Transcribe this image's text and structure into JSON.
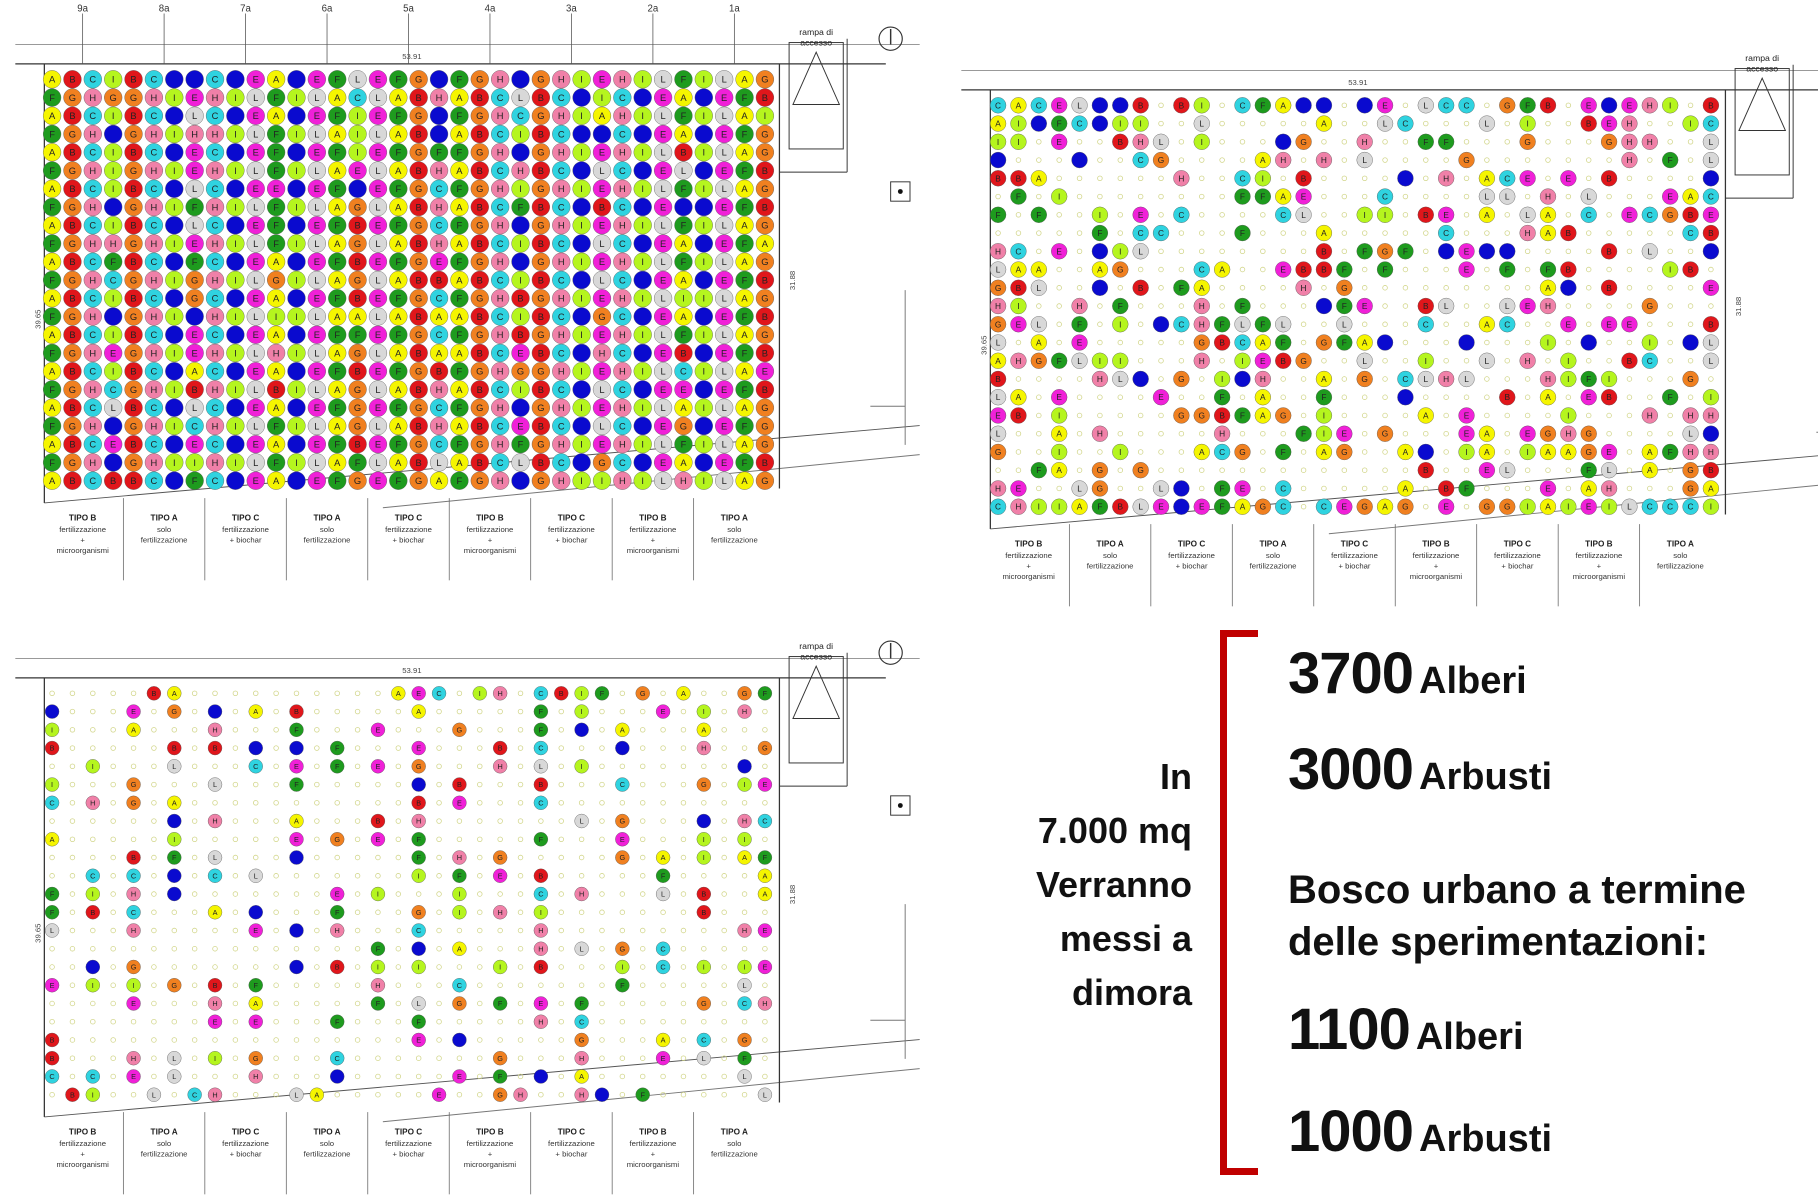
{
  "shared_labels": {
    "ramp_line1": "rampa di",
    "ramp_line2": "accesso",
    "width_dimension": "53.91",
    "height_dimension": "31.88",
    "height_dimension_left": "39.65"
  },
  "row_markers": [
    "9a",
    "8a",
    "7a",
    "6a",
    "5a",
    "4a",
    "3a",
    "2a",
    "1a"
  ],
  "treatments": [
    {
      "tipo": "TIPO B",
      "lines": [
        "fertilizzazione",
        "+",
        "microorganismi"
      ]
    },
    {
      "tipo": "TIPO A",
      "lines": [
        "solo",
        "fertilizzazione"
      ]
    },
    {
      "tipo": "TIPO C",
      "lines": [
        "fertilizzazione",
        "+ biochar"
      ]
    },
    {
      "tipo": "TIPO A",
      "lines": [
        "solo",
        "fertilizzazione"
      ]
    },
    {
      "tipo": "TIPO C",
      "lines": [
        "fertilizzazione",
        "+ biochar"
      ]
    },
    {
      "tipo": "TIPO B",
      "lines": [
        "fertilizzazione",
        "+",
        "microorganismi"
      ]
    },
    {
      "tipo": "TIPO C",
      "lines": [
        "fertilizzazione",
        "+ biochar"
      ]
    },
    {
      "tipo": "TIPO B",
      "lines": [
        "fertilizzazione",
        "+",
        "microorganismi"
      ]
    },
    {
      "tipo": "TIPO A",
      "lines": [
        "solo",
        "fertilizzazione"
      ]
    }
  ],
  "species": [
    {
      "letter": "A",
      "color": "#f5f500"
    },
    {
      "letter": "B",
      "color": "#e0161b"
    },
    {
      "letter": "C",
      "color": "#2fd3e0"
    },
    {
      "letter": "D",
      "color": "#0a0acf"
    },
    {
      "letter": "E",
      "color": "#f020d8"
    },
    {
      "letter": "F",
      "color": "#1e9b1e"
    },
    {
      "letter": "G",
      "color": "#f08020"
    },
    {
      "letter": "H",
      "color": "#f080a8"
    },
    {
      "letter": "I",
      "color": "#b5f51e"
    },
    {
      "letter": "L",
      "color": "#d8d8d8"
    }
  ],
  "summary": {
    "intro": [
      "In",
      "7.000 mq",
      "Verranno",
      "messi  a",
      "dimora"
    ],
    "planted": [
      {
        "value": "3700",
        "label": "Alberi"
      },
      {
        "value": "3000",
        "label": "Arbusti"
      }
    ],
    "final_label_line1": "Bosco urbano a termine",
    "final_label_line2": "delle sperimentazioni:",
    "final": [
      {
        "value": "1100",
        "label": "Alberi"
      },
      {
        "value": "1000",
        "label": "Arbusti"
      }
    ],
    "bracket_color": "#c00000"
  }
}
